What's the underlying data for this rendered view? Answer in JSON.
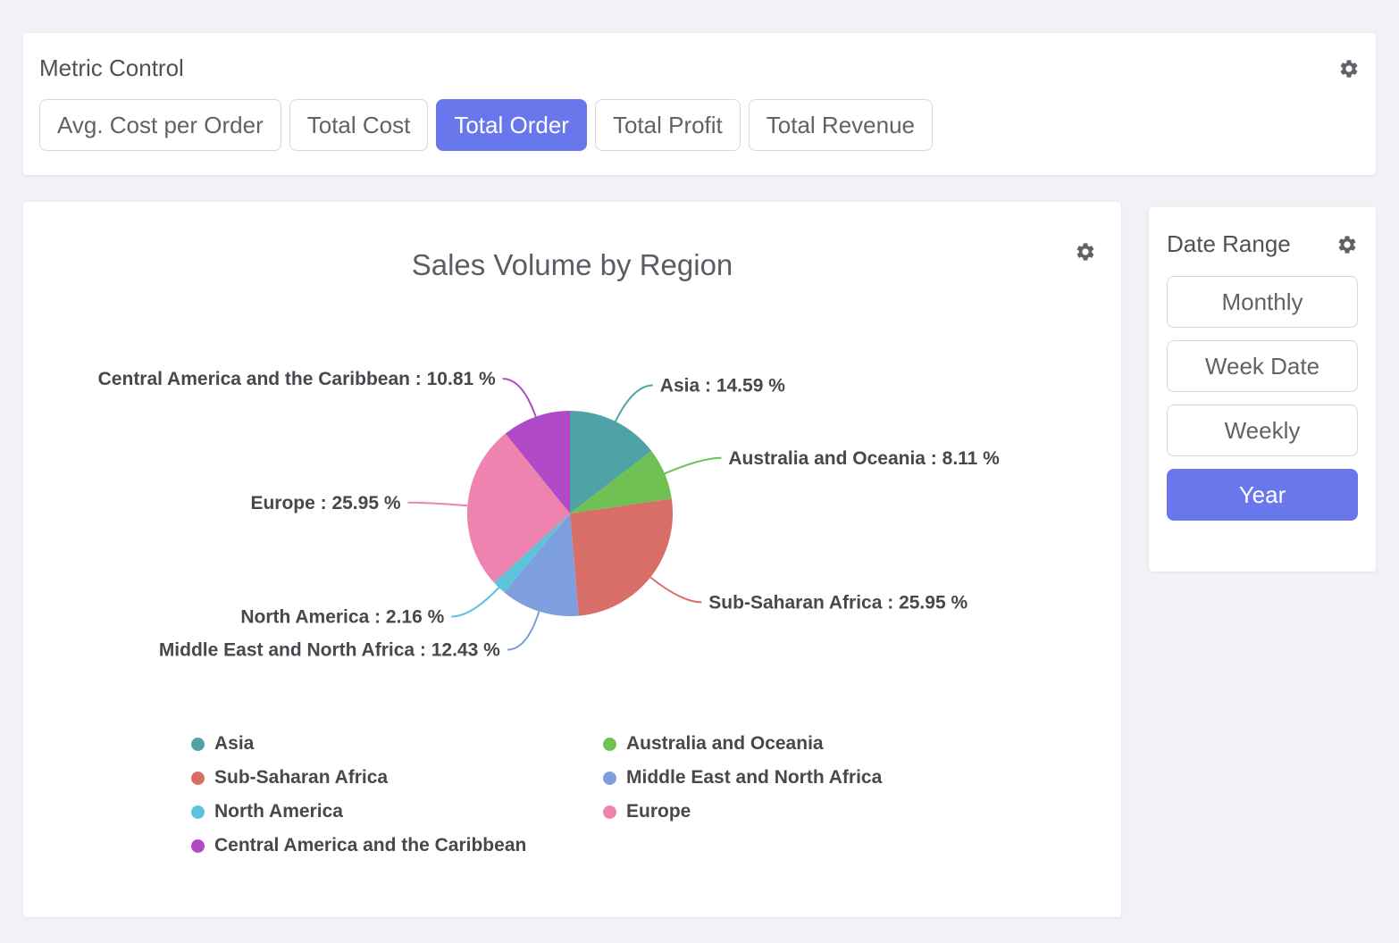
{
  "page": {
    "background": "#f1f1f6"
  },
  "icons": {
    "gear": "settings-gear"
  },
  "colors": {
    "accent_blue": "#6877ec",
    "panel_bg": "#ffffff",
    "page_bg": "#f1f1f6",
    "button_text": "#5f6368",
    "button_border": "#d8d8dc",
    "title_text": "#4e5156",
    "chart_label_text": "#47474d",
    "gear_icon": "#5f6368"
  },
  "metric_control": {
    "title": "Metric Control",
    "buttons": [
      {
        "label": "Avg. Cost per Order",
        "selected": false
      },
      {
        "label": "Total Cost",
        "selected": false
      },
      {
        "label": "Total Order",
        "selected": true
      },
      {
        "label": "Total Profit",
        "selected": false
      },
      {
        "label": "Total Revenue",
        "selected": false
      }
    ]
  },
  "date_range": {
    "title": "Date Range",
    "buttons": [
      {
        "label": "Monthly",
        "selected": false
      },
      {
        "label": "Week Date",
        "selected": false
      },
      {
        "label": "Weekly",
        "selected": false
      },
      {
        "label": "Year",
        "selected": true
      }
    ]
  },
  "chart_data": {
    "type": "pie",
    "title": "Sales Volume by Region",
    "value_unit": "%",
    "label_format": "{name} : {value} %",
    "direction": "clockwise",
    "start_angle_deg": 0,
    "slices": [
      {
        "name": "Asia",
        "value": 14.59,
        "color": "#4fa3a6"
      },
      {
        "name": "Australia and Oceania",
        "value": 8.11,
        "color": "#6ec152"
      },
      {
        "name": "Sub-Saharan Africa",
        "value": 25.95,
        "color": "#d76f68"
      },
      {
        "name": "Middle East and North Africa",
        "value": 12.43,
        "color": "#7d9fdd"
      },
      {
        "name": "North America",
        "value": 2.16,
        "color": "#5bc4da"
      },
      {
        "name": "Europe",
        "value": 25.95,
        "color": "#ee83b0"
      },
      {
        "name": "Central America and the Caribbean",
        "value": 10.81,
        "color": "#b04ac6"
      }
    ],
    "legend_position": "bottom",
    "legend_columns": [
      [
        "Asia",
        "Sub-Saharan Africa",
        "North America",
        "Central America and the Caribbean"
      ],
      [
        "Australia and Oceania",
        "Middle East and North Africa",
        "Europe"
      ]
    ]
  }
}
